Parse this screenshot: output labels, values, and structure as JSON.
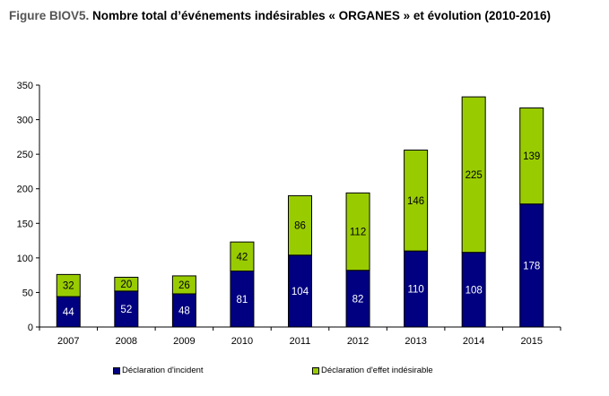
{
  "title": {
    "figure": "Figure BIOV5.",
    "text": "Nombre total d’événements indésirables « ORGANES » et évolution (2010-2016)"
  },
  "colors": {
    "incident": "#000080",
    "effet": "#99CC00",
    "outline": "#000000"
  },
  "chart_data": {
    "type": "bar",
    "stacked": true,
    "title": "Figure BIOV5. Nombre total d’événements indésirables « ORGANES » et évolution (2010-2016)",
    "xlabel": "",
    "ylabel": "",
    "categories": [
      "2007",
      "2008",
      "2009",
      "2010",
      "2011",
      "2012",
      "2013",
      "2014",
      "2015"
    ],
    "series": [
      {
        "name": "Déclaration d'incident",
        "color": "#000080",
        "values": [
          44,
          52,
          48,
          81,
          104,
          82,
          110,
          108,
          178
        ]
      },
      {
        "name": "Déclaration d'effet indésirable",
        "color": "#99CC00",
        "values": [
          32,
          20,
          26,
          42,
          86,
          112,
          146,
          225,
          139
        ]
      }
    ],
    "ylim": [
      0,
      350
    ],
    "yticks": [
      0,
      50,
      100,
      150,
      200,
      250,
      300,
      350
    ],
    "grid": false,
    "legend_position": "bottom",
    "data_labels": true
  }
}
